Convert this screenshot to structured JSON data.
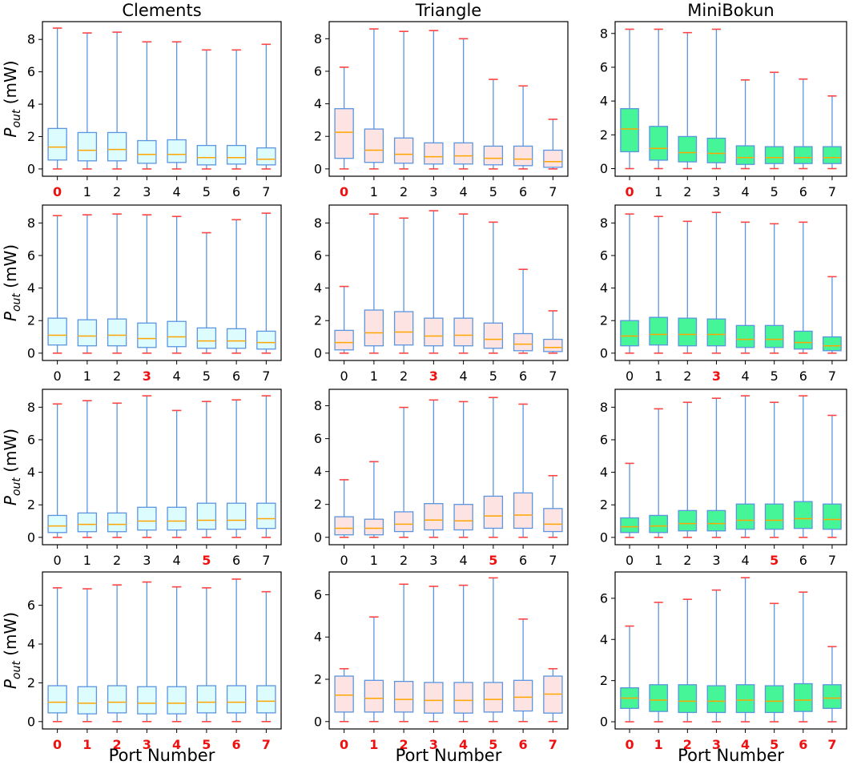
{
  "figure": {
    "x_axis_label": "Port Number",
    "y_axis_label_main": "P",
    "y_axis_label_sub": "out",
    "y_axis_label_unit": " (mW)"
  },
  "colors": {
    "Clements": "#ddfcfe",
    "Triangle": "#fde3e1",
    "MiniBokun": "#45f597",
    "box_edge": "#5b95e0",
    "median": "#ffa500",
    "cap": "#ff4444",
    "highlight_tick": "#ee1111"
  },
  "chart_data": [
    {
      "type": "box",
      "title": "Clements",
      "row": 0,
      "col": 0,
      "categories": [
        "0",
        "1",
        "2",
        "3",
        "4",
        "5",
        "6",
        "7"
      ],
      "highlight": [
        0
      ],
      "ylim": [
        -0.45,
        9.1
      ],
      "yticks": [
        0,
        2,
        4,
        6,
        8
      ],
      "boxes": [
        {
          "min": 0,
          "q1": 0.55,
          "median": 1.35,
          "q3": 2.5,
          "max": 8.7
        },
        {
          "min": 0,
          "q1": 0.5,
          "median": 1.15,
          "q3": 2.25,
          "max": 8.4
        },
        {
          "min": 0,
          "q1": 0.5,
          "median": 1.2,
          "q3": 2.25,
          "max": 8.45
        },
        {
          "min": 0,
          "q1": 0.35,
          "median": 0.9,
          "q3": 1.75,
          "max": 7.85
        },
        {
          "min": 0,
          "q1": 0.4,
          "median": 0.9,
          "q3": 1.8,
          "max": 7.85
        },
        {
          "min": 0,
          "q1": 0.25,
          "median": 0.7,
          "q3": 1.45,
          "max": 7.35
        },
        {
          "min": 0,
          "q1": 0.3,
          "median": 0.7,
          "q3": 1.45,
          "max": 7.35
        },
        {
          "min": 0,
          "q1": 0.25,
          "median": 0.6,
          "q3": 1.3,
          "max": 7.7
        }
      ]
    },
    {
      "type": "box",
      "title": "Triangle",
      "row": 0,
      "col": 1,
      "categories": [
        "0",
        "1",
        "2",
        "3",
        "4",
        "5",
        "6",
        "7"
      ],
      "highlight": [
        0
      ],
      "ylim": [
        -0.45,
        9.05
      ],
      "yticks": [
        0,
        2,
        4,
        6,
        8
      ],
      "boxes": [
        {
          "min": 0,
          "q1": 0.65,
          "median": 2.25,
          "q3": 3.7,
          "max": 6.25
        },
        {
          "min": 0,
          "q1": 0.4,
          "median": 1.15,
          "q3": 2.45,
          "max": 8.6
        },
        {
          "min": 0,
          "q1": 0.35,
          "median": 0.9,
          "q3": 1.9,
          "max": 8.45
        },
        {
          "min": 0,
          "q1": 0.3,
          "median": 0.75,
          "q3": 1.6,
          "max": 8.5
        },
        {
          "min": 0,
          "q1": 0.3,
          "median": 0.8,
          "q3": 1.6,
          "max": 8.0
        },
        {
          "min": 0,
          "q1": 0.25,
          "median": 0.65,
          "q3": 1.4,
          "max": 5.5
        },
        {
          "min": 0,
          "q1": 0.2,
          "median": 0.6,
          "q3": 1.4,
          "max": 5.1
        },
        {
          "min": 0,
          "q1": 0.1,
          "median": 0.45,
          "q3": 1.15,
          "max": 3.05
        }
      ]
    },
    {
      "type": "box",
      "title": "MiniBokun",
      "row": 0,
      "col": 2,
      "categories": [
        "0",
        "1",
        "2",
        "3",
        "4",
        "5",
        "6",
        "7"
      ],
      "highlight": [
        0
      ],
      "ylim": [
        -0.45,
        8.7
      ],
      "yticks": [
        0,
        2,
        4,
        6,
        8
      ],
      "boxes": [
        {
          "min": 0,
          "q1": 1.0,
          "median": 2.35,
          "q3": 3.55,
          "max": 8.25
        },
        {
          "min": 0,
          "q1": 0.5,
          "median": 1.2,
          "q3": 2.5,
          "max": 8.25
        },
        {
          "min": 0,
          "q1": 0.4,
          "median": 0.95,
          "q3": 1.9,
          "max": 8.05
        },
        {
          "min": 0,
          "q1": 0.35,
          "median": 0.9,
          "q3": 1.8,
          "max": 8.25
        },
        {
          "min": 0,
          "q1": 0.25,
          "median": 0.65,
          "q3": 1.35,
          "max": 5.25
        },
        {
          "min": 0,
          "q1": 0.3,
          "median": 0.65,
          "q3": 1.3,
          "max": 5.7
        },
        {
          "min": 0,
          "q1": 0.3,
          "median": 0.65,
          "q3": 1.3,
          "max": 5.3
        },
        {
          "min": 0,
          "q1": 0.3,
          "median": 0.65,
          "q3": 1.3,
          "max": 4.3
        }
      ]
    },
    {
      "type": "box",
      "title": "",
      "row": 1,
      "col": 0,
      "categories": [
        "0",
        "1",
        "2",
        "3",
        "4",
        "5",
        "6",
        "7"
      ],
      "highlight": [
        3
      ],
      "ylim": [
        -0.45,
        9.1
      ],
      "yticks": [
        0,
        2,
        4,
        6,
        8
      ],
      "boxes": [
        {
          "min": 0,
          "q1": 0.5,
          "median": 1.1,
          "q3": 2.15,
          "max": 8.45
        },
        {
          "min": 0,
          "q1": 0.45,
          "median": 1.05,
          "q3": 2.05,
          "max": 8.5
        },
        {
          "min": 0,
          "q1": 0.45,
          "median": 1.1,
          "q3": 2.1,
          "max": 8.55
        },
        {
          "min": 0,
          "q1": 0.35,
          "median": 0.9,
          "q3": 1.85,
          "max": 8.5
        },
        {
          "min": 0,
          "q1": 0.4,
          "median": 1.0,
          "q3": 1.95,
          "max": 8.4
        },
        {
          "min": 0,
          "q1": 0.3,
          "median": 0.75,
          "q3": 1.55,
          "max": 7.4
        },
        {
          "min": 0,
          "q1": 0.3,
          "median": 0.75,
          "q3": 1.5,
          "max": 8.2
        },
        {
          "min": 0,
          "q1": 0.25,
          "median": 0.65,
          "q3": 1.35,
          "max": 8.6
        }
      ]
    },
    {
      "type": "box",
      "title": "",
      "row": 1,
      "col": 1,
      "categories": [
        "0",
        "1",
        "2",
        "3",
        "4",
        "5",
        "6",
        "7"
      ],
      "highlight": [
        3
      ],
      "ylim": [
        -0.45,
        9.1
      ],
      "yticks": [
        0,
        2,
        4,
        6,
        8
      ],
      "boxes": [
        {
          "min": 0,
          "q1": 0.2,
          "median": 0.65,
          "q3": 1.4,
          "max": 4.1
        },
        {
          "min": 0,
          "q1": 0.45,
          "median": 1.25,
          "q3": 2.65,
          "max": 8.55
        },
        {
          "min": 0,
          "q1": 0.5,
          "median": 1.3,
          "q3": 2.55,
          "max": 8.3
        },
        {
          "min": 0,
          "q1": 0.45,
          "median": 1.05,
          "q3": 2.15,
          "max": 8.75
        },
        {
          "min": 0,
          "q1": 0.45,
          "median": 1.1,
          "q3": 2.15,
          "max": 8.55
        },
        {
          "min": 0,
          "q1": 0.3,
          "median": 0.85,
          "q3": 1.85,
          "max": 8.05
        },
        {
          "min": 0,
          "q1": 0.15,
          "median": 0.55,
          "q3": 1.2,
          "max": 5.15
        },
        {
          "min": 0,
          "q1": 0.1,
          "median": 0.35,
          "q3": 0.85,
          "max": 2.6
        }
      ]
    },
    {
      "type": "box",
      "title": "",
      "row": 1,
      "col": 2,
      "categories": [
        "0",
        "1",
        "2",
        "3",
        "4",
        "5",
        "6",
        "7"
      ],
      "highlight": [
        3
      ],
      "ylim": [
        -0.45,
        9.1
      ],
      "yticks": [
        0,
        2,
        4,
        6,
        8
      ],
      "boxes": [
        {
          "min": 0,
          "q1": 0.45,
          "median": 1.05,
          "q3": 2.0,
          "max": 8.55
        },
        {
          "min": 0,
          "q1": 0.5,
          "median": 1.15,
          "q3": 2.2,
          "max": 8.4
        },
        {
          "min": 0,
          "q1": 0.45,
          "median": 1.15,
          "q3": 2.15,
          "max": 8.1
        },
        {
          "min": 0,
          "q1": 0.45,
          "median": 1.15,
          "q3": 2.1,
          "max": 8.65
        },
        {
          "min": 0,
          "q1": 0.35,
          "median": 0.85,
          "q3": 1.7,
          "max": 8.05
        },
        {
          "min": 0,
          "q1": 0.35,
          "median": 0.85,
          "q3": 1.7,
          "max": 7.95
        },
        {
          "min": 0,
          "q1": 0.25,
          "median": 0.65,
          "q3": 1.35,
          "max": 8.05
        },
        {
          "min": 0,
          "q1": 0.15,
          "median": 0.45,
          "q3": 1.0,
          "max": 4.7
        }
      ]
    },
    {
      "type": "box",
      "title": "",
      "row": 2,
      "col": 0,
      "categories": [
        "0",
        "1",
        "2",
        "3",
        "4",
        "5",
        "6",
        "7"
      ],
      "highlight": [
        5
      ],
      "ylim": [
        -0.45,
        9.1
      ],
      "yticks": [
        0,
        2,
        4,
        6,
        8
      ],
      "boxes": [
        {
          "min": 0,
          "q1": 0.3,
          "median": 0.7,
          "q3": 1.35,
          "max": 8.2
        },
        {
          "min": 0,
          "q1": 0.35,
          "median": 0.8,
          "q3": 1.5,
          "max": 8.4
        },
        {
          "min": 0,
          "q1": 0.35,
          "median": 0.8,
          "q3": 1.5,
          "max": 8.25
        },
        {
          "min": 0,
          "q1": 0.45,
          "median": 1.0,
          "q3": 1.85,
          "max": 8.7
        },
        {
          "min": 0,
          "q1": 0.45,
          "median": 1.0,
          "q3": 1.85,
          "max": 7.8
        },
        {
          "min": 0,
          "q1": 0.5,
          "median": 1.05,
          "q3": 2.1,
          "max": 8.35
        },
        {
          "min": 0,
          "q1": 0.5,
          "median": 1.05,
          "q3": 2.1,
          "max": 8.45
        },
        {
          "min": 0,
          "q1": 0.55,
          "median": 1.15,
          "q3": 2.1,
          "max": 8.7
        }
      ]
    },
    {
      "type": "box",
      "title": "",
      "row": 2,
      "col": 1,
      "categories": [
        "0",
        "1",
        "2",
        "3",
        "4",
        "5",
        "6",
        "7"
      ],
      "highlight": [
        5
      ],
      "ylim": [
        -0.45,
        9.0
      ],
      "yticks": [
        0,
        2,
        4,
        6,
        8
      ],
      "boxes": [
        {
          "min": 0,
          "q1": 0.15,
          "median": 0.55,
          "q3": 1.25,
          "max": 3.5
        },
        {
          "min": 0,
          "q1": 0.15,
          "median": 0.55,
          "q3": 1.1,
          "max": 4.6
        },
        {
          "min": 0,
          "q1": 0.35,
          "median": 0.8,
          "q3": 1.55,
          "max": 7.9
        },
        {
          "min": 0,
          "q1": 0.45,
          "median": 1.05,
          "q3": 2.05,
          "max": 8.35
        },
        {
          "min": 0,
          "q1": 0.45,
          "median": 1.0,
          "q3": 2.0,
          "max": 8.25
        },
        {
          "min": 0,
          "q1": 0.55,
          "median": 1.3,
          "q3": 2.5,
          "max": 8.5
        },
        {
          "min": 0,
          "q1": 0.55,
          "median": 1.35,
          "q3": 2.7,
          "max": 8.1
        },
        {
          "min": 0,
          "q1": 0.35,
          "median": 0.8,
          "q3": 1.75,
          "max": 3.75
        }
      ]
    },
    {
      "type": "box",
      "title": "",
      "row": 2,
      "col": 2,
      "categories": [
        "0",
        "1",
        "2",
        "3",
        "4",
        "5",
        "6",
        "7"
      ],
      "highlight": [
        5
      ],
      "ylim": [
        -0.45,
        9.1
      ],
      "yticks": [
        0,
        2,
        4,
        6,
        8
      ],
      "boxes": [
        {
          "min": 0,
          "q1": 0.3,
          "median": 0.65,
          "q3": 1.2,
          "max": 4.55
        },
        {
          "min": 0,
          "q1": 0.3,
          "median": 0.7,
          "q3": 1.35,
          "max": 7.9
        },
        {
          "min": 0,
          "q1": 0.4,
          "median": 0.85,
          "q3": 1.65,
          "max": 8.3
        },
        {
          "min": 0,
          "q1": 0.4,
          "median": 0.85,
          "q3": 1.65,
          "max": 8.55
        },
        {
          "min": 0,
          "q1": 0.5,
          "median": 1.05,
          "q3": 2.05,
          "max": 8.7
        },
        {
          "min": 0,
          "q1": 0.5,
          "median": 1.05,
          "q3": 2.05,
          "max": 8.3
        },
        {
          "min": 0,
          "q1": 0.55,
          "median": 1.15,
          "q3": 2.2,
          "max": 8.7
        },
        {
          "min": 0,
          "q1": 0.5,
          "median": 1.1,
          "q3": 2.05,
          "max": 7.5
        }
      ]
    },
    {
      "type": "box",
      "title": "",
      "row": 3,
      "col": 0,
      "categories": [
        "0",
        "1",
        "2",
        "3",
        "4",
        "5",
        "6",
        "7"
      ],
      "highlight": [
        0,
        1,
        2,
        3,
        4,
        5,
        6,
        7
      ],
      "ylim": [
        -0.38,
        7.72
      ],
      "yticks": [
        0,
        2,
        4,
        6
      ],
      "boxes": [
        {
          "min": 0,
          "q1": 0.45,
          "median": 1.0,
          "q3": 1.85,
          "max": 6.9
        },
        {
          "min": 0,
          "q1": 0.4,
          "median": 0.95,
          "q3": 1.8,
          "max": 6.85
        },
        {
          "min": 0,
          "q1": 0.45,
          "median": 1.0,
          "q3": 1.85,
          "max": 7.05
        },
        {
          "min": 0,
          "q1": 0.4,
          "median": 0.95,
          "q3": 1.8,
          "max": 7.2
        },
        {
          "min": 0,
          "q1": 0.4,
          "median": 0.95,
          "q3": 1.8,
          "max": 6.95
        },
        {
          "min": 0,
          "q1": 0.45,
          "median": 1.0,
          "q3": 1.85,
          "max": 6.9
        },
        {
          "min": 0,
          "q1": 0.45,
          "median": 1.0,
          "q3": 1.85,
          "max": 7.35
        },
        {
          "min": 0,
          "q1": 0.45,
          "median": 1.05,
          "q3": 1.85,
          "max": 6.7
        }
      ]
    },
    {
      "type": "box",
      "title": "",
      "row": 3,
      "col": 1,
      "categories": [
        "0",
        "1",
        "2",
        "3",
        "4",
        "5",
        "6",
        "7"
      ],
      "highlight": [
        0,
        1,
        2,
        3,
        4,
        5,
        6,
        7
      ],
      "ylim": [
        -0.35,
        7.08
      ],
      "yticks": [
        0,
        2,
        4,
        6
      ],
      "boxes": [
        {
          "min": 0,
          "q1": 0.45,
          "median": 1.25,
          "q3": 2.15,
          "max": 2.5
        },
        {
          "min": 0,
          "q1": 0.45,
          "median": 1.1,
          "q3": 1.95,
          "max": 4.95
        },
        {
          "min": 0,
          "q1": 0.45,
          "median": 1.05,
          "q3": 1.9,
          "max": 6.5
        },
        {
          "min": 0,
          "q1": 0.4,
          "median": 1.0,
          "q3": 1.85,
          "max": 6.4
        },
        {
          "min": 0,
          "q1": 0.4,
          "median": 1.0,
          "q3": 1.85,
          "max": 6.45
        },
        {
          "min": 0,
          "q1": 0.45,
          "median": 1.05,
          "q3": 1.85,
          "max": 6.8
        },
        {
          "min": 0,
          "q1": 0.5,
          "median": 1.15,
          "q3": 1.95,
          "max": 4.85
        },
        {
          "min": 0,
          "q1": 0.4,
          "median": 1.3,
          "q3": 2.15,
          "max": 2.5
        }
      ]
    },
    {
      "type": "box",
      "title": "",
      "row": 3,
      "col": 2,
      "categories": [
        "0",
        "1",
        "2",
        "3",
        "4",
        "5",
        "6",
        "7"
      ],
      "highlight": [
        0,
        1,
        2,
        3,
        4,
        5,
        6,
        7
      ],
      "ylim": [
        -0.35,
        7.28
      ],
      "yticks": [
        0,
        2,
        4,
        6
      ],
      "boxes": [
        {
          "min": 0,
          "q1": 0.65,
          "median": 1.15,
          "q3": 1.65,
          "max": 4.65
        },
        {
          "min": 0,
          "q1": 0.5,
          "median": 1.05,
          "q3": 1.8,
          "max": 5.8
        },
        {
          "min": 0,
          "q1": 0.45,
          "median": 1.0,
          "q3": 1.8,
          "max": 5.95
        },
        {
          "min": 0,
          "q1": 0.45,
          "median": 1.0,
          "q3": 1.75,
          "max": 6.4
        },
        {
          "min": 0,
          "q1": 0.45,
          "median": 1.05,
          "q3": 1.8,
          "max": 7.0
        },
        {
          "min": 0,
          "q1": 0.45,
          "median": 1.0,
          "q3": 1.75,
          "max": 5.75
        },
        {
          "min": 0,
          "q1": 0.5,
          "median": 1.05,
          "q3": 1.85,
          "max": 6.3
        },
        {
          "min": 0,
          "q1": 0.65,
          "median": 1.15,
          "q3": 1.8,
          "max": 3.65
        }
      ]
    }
  ]
}
